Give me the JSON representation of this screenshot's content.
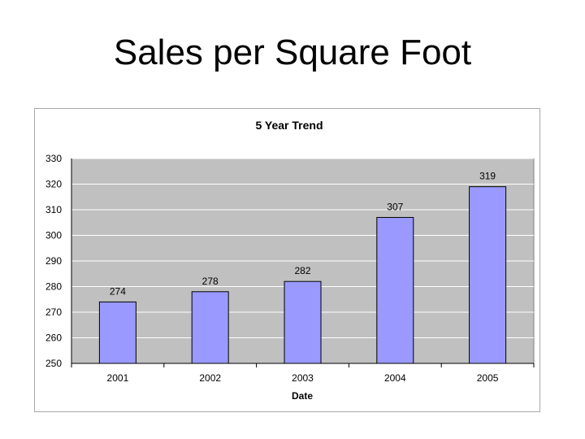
{
  "slide": {
    "title": "Sales per Square Foot"
  },
  "colors": {
    "plot_background": "#c0c0c0",
    "bar_fill": "#9999ff",
    "bar_stroke": "#000000",
    "gridline": "#ffffff"
  },
  "chart_data": {
    "type": "bar",
    "title": "5 Year Trend",
    "xlabel": "Date",
    "ylabel": "",
    "categories": [
      "2001",
      "2002",
      "2003",
      "2004",
      "2005"
    ],
    "values": [
      274,
      278,
      282,
      307,
      319
    ],
    "ylim": [
      250,
      330
    ],
    "yticks": [
      250,
      260,
      270,
      280,
      290,
      300,
      310,
      320,
      330
    ],
    "data_labels": [
      "274",
      "278",
      "282",
      "307",
      "319"
    ],
    "grid": true,
    "legend": "none"
  }
}
